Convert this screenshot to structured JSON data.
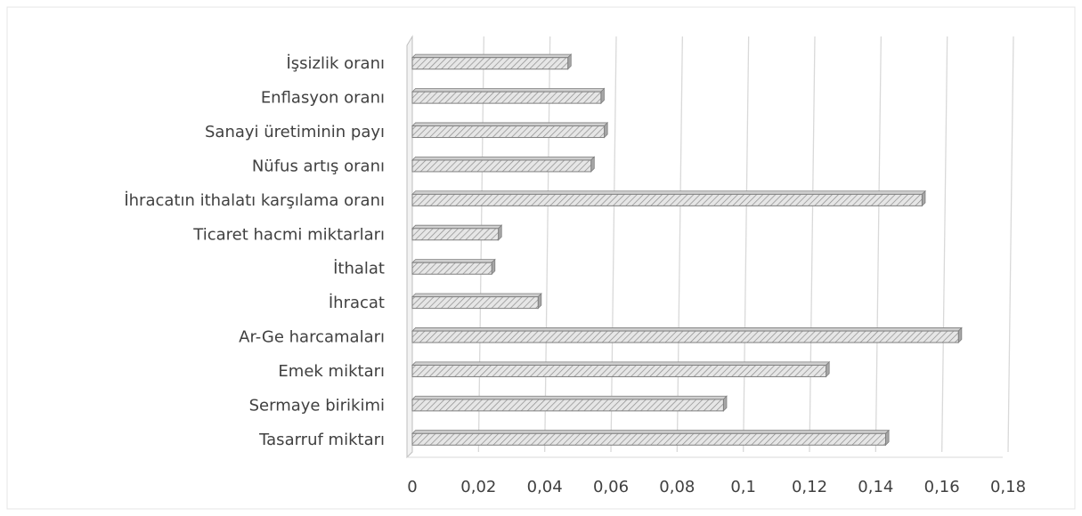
{
  "chart_data": {
    "type": "bar",
    "orientation": "horizontal",
    "style": "3d-hatched",
    "categories": [
      "İşsizlik oranı",
      "Enflasyon oranı",
      "Sanayi üretiminin payı",
      "Nüfus artış oranı",
      "İhracatın ithalatı karşılama oranı",
      "Ticaret hacmi miktarları",
      "İthalat",
      "İhracat",
      "Ar-Ge harcamaları",
      "Emek miktarı",
      "Sermaye birikimi",
      "Tasarruf miktarı"
    ],
    "values": [
      0.047,
      0.057,
      0.058,
      0.054,
      0.154,
      0.026,
      0.024,
      0.038,
      0.165,
      0.125,
      0.094,
      0.143
    ],
    "xlim": [
      0,
      0.18
    ],
    "xticks": [
      "0",
      "0,02",
      "0,04",
      "0,06",
      "0,08",
      "0,1",
      "0,12",
      "0,14",
      "0,16",
      "0,18"
    ],
    "title": "",
    "xlabel": "",
    "ylabel": "",
    "grid": true,
    "legend": "none",
    "colors": {
      "bar_fill": "#e6e6e6",
      "hatch": "#8c8c8c",
      "bar_border": "#7f7f7f",
      "bar_side": "#a6a6a6",
      "gridline": "#d9d9d9",
      "text": "#404040"
    }
  }
}
